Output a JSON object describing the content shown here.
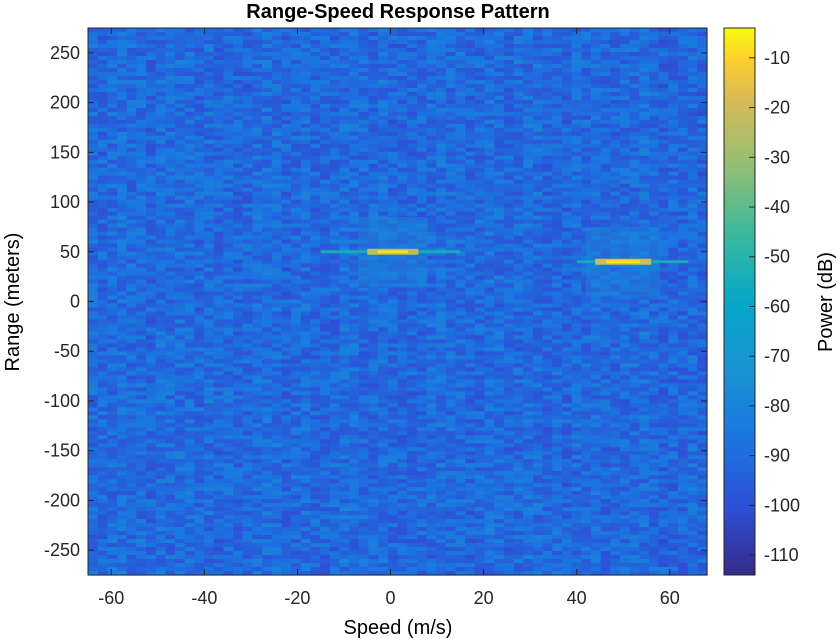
{
  "chart_data": {
    "type": "heatmap",
    "title": "Range-Speed Response Pattern",
    "xlabel": "Speed (m/s)",
    "ylabel": "Range (meters)",
    "xlim": [
      -65,
      68
    ],
    "ylim": [
      -275,
      275
    ],
    "xticks": [
      -60,
      -40,
      -20,
      0,
      20,
      40,
      60
    ],
    "yticks": [
      250,
      200,
      150,
      100,
      50,
      0,
      -50,
      -100,
      -150,
      -200,
      -250
    ],
    "colorbar": {
      "label": "Power (dB)",
      "range": [
        -114,
        -4
      ],
      "ticks": [
        -10,
        -20,
        -30,
        -40,
        -50,
        -60,
        -70,
        -80,
        -90,
        -100,
        -110
      ],
      "colormap": "parula"
    },
    "background_level_db": [
      -100,
      -82
    ],
    "targets": [
      {
        "speed": 0,
        "range": 50,
        "power_db": -25,
        "speed_extent": [
          -5,
          6
        ],
        "trail_extent": [
          -15,
          15
        ]
      },
      {
        "speed": 50,
        "range": 40,
        "power_db": -20,
        "speed_extent": [
          44,
          56
        ],
        "trail_extent": [
          40,
          64
        ]
      }
    ],
    "grid": false
  }
}
